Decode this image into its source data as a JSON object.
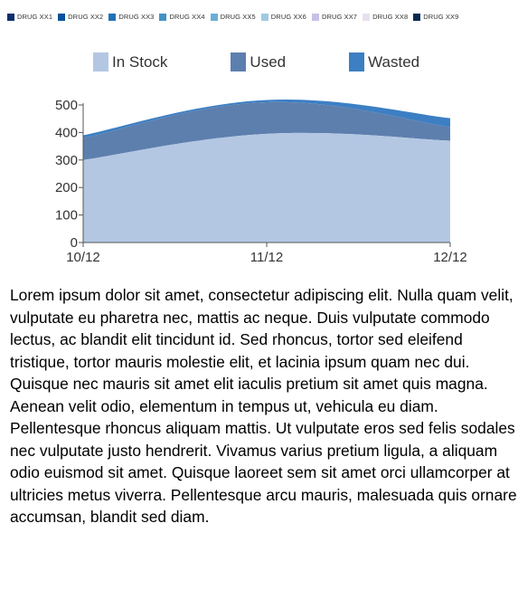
{
  "drug_legend": [
    {
      "label": "DRUG XX1",
      "color": "#08306b"
    },
    {
      "label": "DRUG XX2",
      "color": "#08519c"
    },
    {
      "label": "DRUG XX3",
      "color": "#2171b5"
    },
    {
      "label": "DRUG XX4",
      "color": "#4292c6"
    },
    {
      "label": "DRUG XX5",
      "color": "#6baed6"
    },
    {
      "label": "DRUG XX6",
      "color": "#9ecae1"
    },
    {
      "label": "DRUG XX7",
      "color": "#c6c2e6"
    },
    {
      "label": "DRUG XX8",
      "color": "#e8e0f0"
    },
    {
      "label": "DRUG XX9",
      "color": "#062a52"
    }
  ],
  "chart_data": {
    "type": "area",
    "stacked": true,
    "x": [
      "10/12",
      "11/12",
      "12/12"
    ],
    "ylim": [
      0,
      500
    ],
    "yticks": [
      0,
      100,
      200,
      300,
      400,
      500
    ],
    "legend_position": "top",
    "grid": false,
    "series": [
      {
        "name": "In Stock",
        "color": "#b3c7e3",
        "values": [
          300,
          395,
          370
        ]
      },
      {
        "name": "Used",
        "color": "#5d7fae",
        "values": [
          80,
          115,
          50
        ]
      },
      {
        "name": "Wasted",
        "color": "#3c7fc3",
        "values": [
          10,
          8,
          32
        ]
      }
    ]
  },
  "paragraph": "Lorem ipsum dolor sit amet, consectetur adipiscing elit. Nulla quam velit, vulputate eu pharetra nec, mattis ac neque. Duis vulputate commodo lectus, ac blandit elit tincidunt id. Sed rhoncus, tortor sed eleifend tristique, tortor mauris molestie elit, et lacinia ipsum quam nec dui. Quisque nec mauris sit amet elit iaculis pretium sit amet quis magna. Aenean velit odio, elementum in tempus ut, vehicula eu diam. Pellentesque rhoncus aliquam mattis. Ut vulputate eros sed felis sodales nec vulputate justo hendrerit. Vivamus varius pretium ligula, a aliquam odio euismod sit amet. Quisque laoreet sem sit amet orci ullamcorper at ultricies metus viverra. Pellentesque arcu mauris, malesuada quis ornare accumsan, blandit sed diam."
}
